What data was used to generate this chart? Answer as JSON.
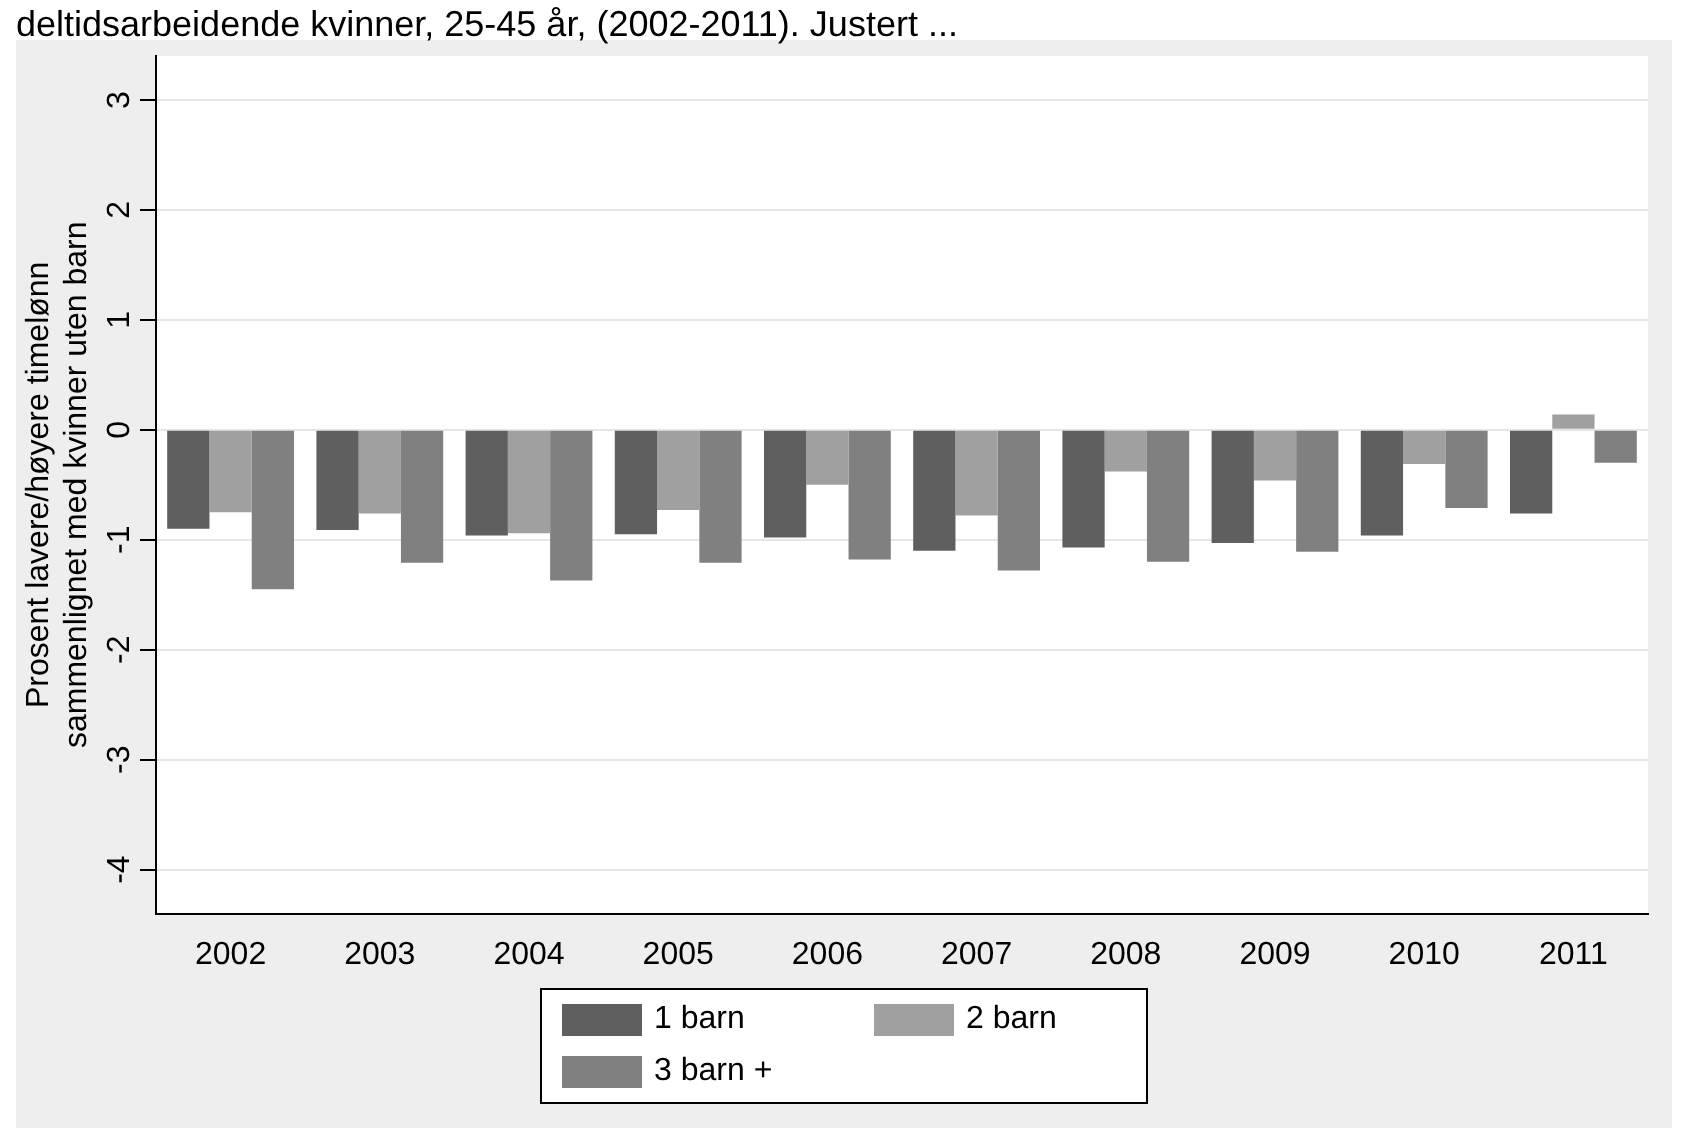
{
  "chart_data": {
    "type": "bar",
    "title": "deltidsarbeidende kvinner, 25-45 år, (2002-2011). Justert ...",
    "ylabel": "Prosent lavere/høyere timelønn\nsammenlignet med kvinner uten barn",
    "categories": [
      "2002",
      "2003",
      "2004",
      "2005",
      "2006",
      "2007",
      "2008",
      "2009",
      "2010",
      "2011"
    ],
    "series": [
      {
        "name": "1 barn",
        "color": "#5f5f5f",
        "values": [
          -0.9,
          -0.91,
          -0.96,
          -0.95,
          -0.98,
          -1.1,
          -1.07,
          -1.03,
          -0.96,
          -0.76
        ]
      },
      {
        "name": "2 barn",
        "color": "#a0a0a0",
        "values": [
          -0.75,
          -0.76,
          -0.94,
          -0.73,
          -0.5,
          -0.78,
          -0.38,
          -0.46,
          -0.31,
          0.14
        ]
      },
      {
        "name": "3 barn +",
        "color": "#808080",
        "values": [
          -1.45,
          -1.21,
          -1.37,
          -1.21,
          -1.18,
          -1.28,
          -1.2,
          -1.11,
          -0.71,
          -0.3
        ]
      }
    ],
    "ylim": [
      -4.4,
      3.4
    ],
    "yticks": [
      -4,
      -3,
      -2,
      -1,
      0,
      1,
      2,
      3
    ],
    "grid": "y",
    "legend": "bottom"
  }
}
